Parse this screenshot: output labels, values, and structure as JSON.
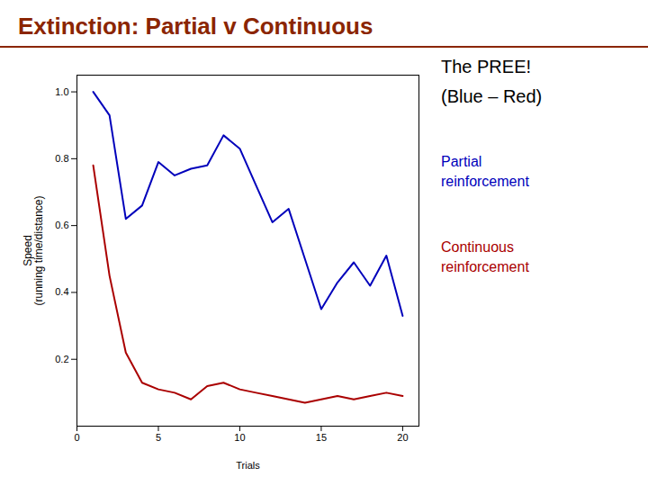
{
  "chart_data": {
    "type": "line",
    "title": "Extinction: Partial v Continuous",
    "x": [
      1,
      2,
      3,
      4,
      5,
      6,
      7,
      8,
      9,
      10,
      11,
      12,
      13,
      14,
      15,
      16,
      17,
      18,
      19,
      20
    ],
    "series": [
      {
        "name": "Partial\nreinforcement",
        "color": "#0000BB",
        "values": [
          1.0,
          0.93,
          0.62,
          0.66,
          0.79,
          0.75,
          0.77,
          0.78,
          0.87,
          0.83,
          0.72,
          0.61,
          0.65,
          0.5,
          0.35,
          0.43,
          0.49,
          0.42,
          0.51,
          0.33
        ]
      },
      {
        "name": "Continuous\nreinforcement",
        "color": "#AA0000",
        "values": [
          0.78,
          0.45,
          0.22,
          0.13,
          0.11,
          0.1,
          0.08,
          0.12,
          0.13,
          0.11,
          0.1,
          0.09,
          0.08,
          0.07,
          0.08,
          0.09,
          0.08,
          0.09,
          0.1,
          0.09
        ]
      }
    ],
    "xlabel": "Trials",
    "ylabel": "Speed\n(running time/distance)",
    "annotations": [
      "The PREE!",
      "(Blue – Red)"
    ],
    "xlim": [
      0,
      21
    ],
    "ylim": [
      0,
      1.05
    ],
    "xticks": [
      0,
      5,
      10,
      15,
      20
    ],
    "yticks": [
      0.2,
      0.4,
      0.6,
      0.8,
      {
        "value": 1.0,
        "label": "1.0"
      }
    ],
    "grid": false
  }
}
